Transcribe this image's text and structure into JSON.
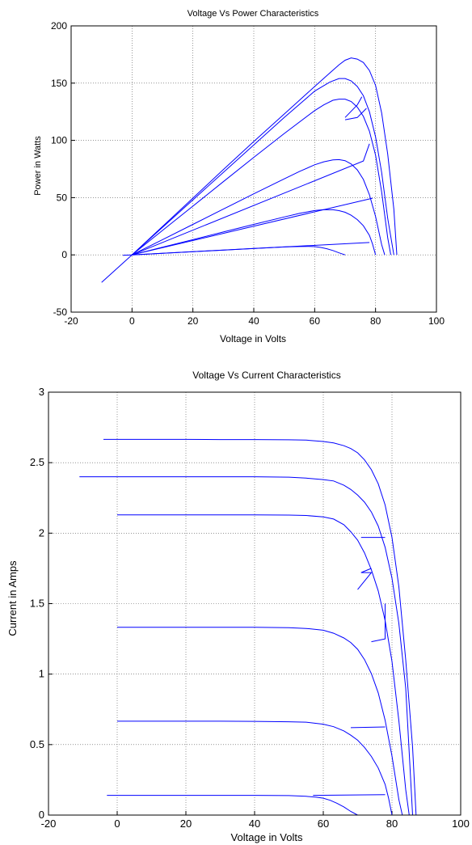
{
  "chart_data": [
    {
      "type": "line",
      "title": "Voltage Vs Power Characteristics",
      "xlabel": "Voltage in Volts",
      "ylabel": "Power in Watts",
      "xlim": [
        -20,
        100
      ],
      "ylim": [
        -50,
        200
      ],
      "xticks": [
        "-20",
        "0",
        "20",
        "40",
        "60",
        "80",
        "100"
      ],
      "yticks": [
        "-50",
        "0",
        "50",
        "100",
        "150",
        "200"
      ],
      "grid": true,
      "line_color": "#0000ff",
      "series": [
        {
          "x": [
            0,
            10,
            20,
            30,
            40,
            50,
            60,
            65,
            68,
            70,
            72,
            74,
            76,
            78,
            80,
            82,
            84,
            86,
            87
          ],
          "y": [
            0,
            24.8,
            49.6,
            74.4,
            99,
            123,
            147,
            159,
            166,
            170,
            172,
            171,
            168,
            161,
            148,
            124,
            88,
            40,
            0
          ]
        },
        {
          "x": [
            -10,
            0,
            10,
            20,
            30,
            40,
            50,
            60,
            65,
            68,
            70,
            72,
            74,
            76,
            78,
            80,
            82,
            84,
            86
          ],
          "y": [
            -24,
            0,
            24,
            48,
            72,
            96,
            120,
            143,
            151,
            154,
            154,
            152,
            147,
            139,
            125,
            103,
            72,
            32,
            0
          ]
        },
        {
          "x": [
            0,
            10,
            20,
            30,
            40,
            50,
            60,
            63,
            66,
            68,
            70,
            72,
            74,
            76,
            78,
            80,
            82,
            84,
            85
          ],
          "y": [
            0,
            21.3,
            42.6,
            63.9,
            85.2,
            106,
            126,
            131,
            135,
            136,
            136,
            134,
            129,
            121,
            108,
            87,
            55,
            15,
            0
          ]
        },
        {
          "x": [
            0,
            10,
            20,
            30,
            40,
            50,
            55,
            60,
            63,
            66,
            68,
            70,
            72,
            74,
            76,
            78,
            80,
            82,
            83
          ],
          "y": [
            0,
            13.3,
            26.6,
            40,
            53.3,
            66.4,
            72.8,
            78.7,
            81.3,
            82.9,
            83.2,
            82.3,
            79.4,
            74.2,
            65.9,
            52.5,
            33.5,
            9,
            0
          ]
        },
        {
          "x": [
            0,
            10,
            20,
            30,
            40,
            50,
            55,
            60,
            63,
            66,
            68,
            70,
            72,
            74,
            76,
            78,
            79,
            80
          ],
          "y": [
            0,
            6.7,
            13.3,
            20,
            26.6,
            33.1,
            36.2,
            38.7,
            39.5,
            39.4,
            38.6,
            37.2,
            34.6,
            30.8,
            25.4,
            17,
            9.5,
            0
          ]
        },
        {
          "x": [
            -3,
            0,
            10,
            20,
            30,
            40,
            50,
            55,
            58,
            60,
            62,
            64,
            66,
            68,
            70
          ],
          "y": [
            -0.4,
            0,
            1.4,
            2.8,
            4.2,
            5.6,
            6.9,
            7.3,
            7.4,
            7.2,
            6.5,
            5.4,
            3.8,
            1.8,
            0
          ]
        },
        {
          "x": [
            0,
            78
          ],
          "y": [
            0,
            10.8
          ]
        },
        {
          "x": [
            0,
            79
          ],
          "y": [
            0,
            49.5
          ]
        },
        {
          "x": [
            0,
            76,
            78
          ],
          "y": [
            0,
            82,
            97
          ]
        },
        {
          "x": [
            70,
            74,
            77
          ],
          "y": [
            118,
            120,
            128
          ]
        },
        {
          "x": [
            70,
            74,
            75.5
          ],
          "y": [
            120,
            131,
            138
          ]
        }
      ]
    },
    {
      "type": "line",
      "title": "Voltage Vs Current Characteristics",
      "xlabel": "Voltage in Volts",
      "ylabel": "Current in Amps",
      "xlim": [
        -20,
        100
      ],
      "ylim": [
        0,
        3
      ],
      "xticks": [
        "-20",
        "0",
        "20",
        "40",
        "60",
        "80",
        "100"
      ],
      "yticks": [
        "0",
        "0.5",
        "1",
        "1.5",
        "2",
        "2.5",
        "3"
      ],
      "grid": true,
      "line_color": "#0000ff",
      "series": [
        {
          "x": [
            -4,
            0,
            10,
            20,
            30,
            40,
            50,
            55,
            60,
            63,
            66,
            68,
            70,
            72,
            74,
            76,
            78,
            80,
            82,
            84,
            86,
            87
          ],
          "y": [
            2.665,
            2.665,
            2.665,
            2.665,
            2.664,
            2.664,
            2.662,
            2.66,
            2.65,
            2.64,
            2.62,
            2.6,
            2.57,
            2.52,
            2.45,
            2.35,
            2.2,
            1.97,
            1.62,
            1.1,
            0.48,
            0
          ]
        },
        {
          "x": [
            -11,
            0,
            10,
            20,
            30,
            40,
            50,
            55,
            60,
            63,
            66,
            68,
            70,
            72,
            74,
            76,
            78,
            80,
            82,
            84,
            86
          ],
          "y": [
            2.4,
            2.4,
            2.4,
            2.4,
            2.4,
            2.4,
            2.397,
            2.39,
            2.38,
            2.37,
            2.34,
            2.31,
            2.27,
            2.22,
            2.15,
            2.05,
            1.9,
            1.68,
            1.36,
            0.9,
            0
          ]
        },
        {
          "x": [
            0,
            10,
            20,
            30,
            40,
            50,
            55,
            60,
            63,
            66,
            68,
            70,
            72,
            74,
            76,
            78,
            80,
            82,
            84,
            85
          ],
          "y": [
            2.13,
            2.13,
            2.13,
            2.13,
            2.13,
            2.128,
            2.125,
            2.115,
            2.1,
            2.06,
            2.01,
            1.95,
            1.86,
            1.74,
            1.59,
            1.38,
            1.09,
            0.67,
            0.18,
            0
          ]
        },
        {
          "x": [
            0,
            10,
            20,
            30,
            40,
            50,
            55,
            60,
            63,
            66,
            68,
            70,
            72,
            74,
            76,
            78,
            80,
            82,
            83
          ],
          "y": [
            1.332,
            1.332,
            1.332,
            1.332,
            1.332,
            1.329,
            1.324,
            1.311,
            1.29,
            1.256,
            1.224,
            1.176,
            1.103,
            1.003,
            0.867,
            0.673,
            0.419,
            0.11,
            0
          ]
        },
        {
          "x": [
            0,
            10,
            20,
            30,
            40,
            50,
            55,
            60,
            63,
            66,
            68,
            70,
            72,
            74,
            76,
            78,
            79,
            80
          ],
          "y": [
            0.666,
            0.666,
            0.666,
            0.666,
            0.665,
            0.662,
            0.659,
            0.645,
            0.627,
            0.597,
            0.567,
            0.531,
            0.48,
            0.416,
            0.334,
            0.218,
            0.12,
            0
          ]
        },
        {
          "x": [
            -3,
            0,
            10,
            20,
            30,
            40,
            50,
            55,
            58,
            60,
            62,
            64,
            66,
            68,
            70
          ],
          "y": [
            0.14,
            0.14,
            0.14,
            0.14,
            0.14,
            0.14,
            0.138,
            0.133,
            0.127,
            0.12,
            0.105,
            0.084,
            0.058,
            0.026,
            0
          ]
        },
        {
          "x": [
            57,
            78
          ],
          "y": [
            0.14,
            0.145
          ]
        },
        {
          "x": [
            68,
            78
          ],
          "y": [
            0.62,
            0.625
          ]
        },
        {
          "x": [
            74,
            78,
            78
          ],
          "y": [
            1.23,
            1.25,
            1.5
          ]
        },
        {
          "x": [
            70,
            74,
            71,
            74
          ],
          "y": [
            1.6,
            1.72,
            1.72,
            1.75
          ]
        },
        {
          "x": [
            71,
            78
          ],
          "y": [
            1.97,
            1.97
          ]
        }
      ]
    }
  ]
}
